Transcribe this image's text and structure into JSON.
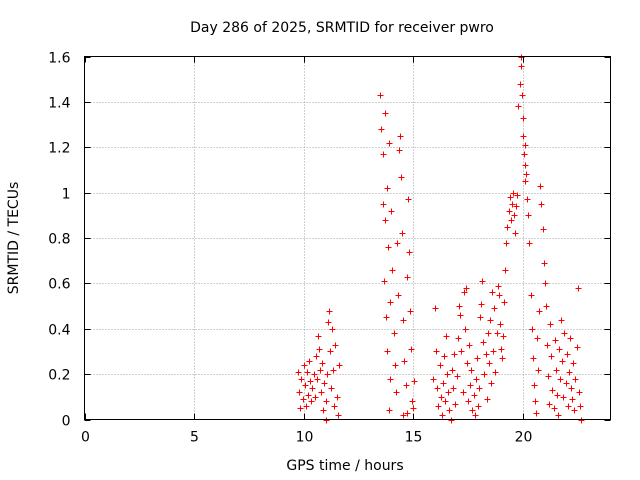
{
  "chart_data": {
    "type": "scatter",
    "title": "Day 286 of 2025, SRMTID for receiver pwro",
    "xlabel": "GPS time / hours",
    "ylabel": "SRMTID / TECUs",
    "xlim": [
      0,
      24
    ],
    "ylim": [
      0,
      1.6
    ],
    "x_ticks": [
      0,
      5,
      10,
      15,
      20
    ],
    "y_ticks": [
      0,
      0.2,
      0.4,
      0.6,
      0.8,
      1,
      1.2,
      1.4,
      1.6
    ],
    "x_tick_labels": [
      "0",
      "5",
      "10",
      "15",
      "20"
    ],
    "y_tick_labels": [
      "0",
      "0.2",
      "0.4",
      "0.6",
      "0.8",
      "1",
      "1.2",
      "1.4",
      "1.6"
    ],
    "grid": true,
    "marker": "+",
    "marker_color": "#ff0000",
    "series": [
      {
        "points": [
          [
            9.75,
            0.21
          ],
          [
            9.8,
            0.12
          ],
          [
            9.85,
            0.05
          ],
          [
            9.9,
            0.18
          ],
          [
            9.95,
            0.09
          ],
          [
            10.0,
            0.24
          ],
          [
            10.05,
            0.15
          ],
          [
            10.1,
            0.06
          ],
          [
            10.15,
            0.21
          ],
          [
            10.2,
            0.11
          ],
          [
            10.25,
            0.26
          ],
          [
            10.3,
            0.17
          ],
          [
            10.35,
            0.08
          ],
          [
            10.4,
            0.14
          ],
          [
            10.45,
            0.2
          ],
          [
            10.5,
            0.1
          ],
          [
            10.55,
            0.28
          ],
          [
            10.6,
            0.18
          ],
          [
            10.65,
            0.37
          ],
          [
            10.7,
            0.31
          ],
          [
            10.75,
            0.22
          ],
          [
            10.8,
            0.12
          ],
          [
            10.85,
            0.25
          ],
          [
            10.9,
            0.04
          ],
          [
            10.95,
            0.16
          ],
          [
            11.0,
            0.08
          ],
          [
            11.0,
            0.0
          ],
          [
            11.05,
            0.2
          ],
          [
            11.1,
            0.43
          ],
          [
            11.15,
            0.48
          ],
          [
            11.2,
            0.3
          ],
          [
            11.25,
            0.14
          ],
          [
            11.3,
            0.4
          ],
          [
            11.35,
            0.22
          ],
          [
            11.4,
            0.06
          ],
          [
            11.45,
            0.33
          ],
          [
            11.5,
            0.1
          ],
          [
            11.55,
            0.02
          ],
          [
            11.6,
            0.24
          ],
          [
            13.5,
            1.43
          ],
          [
            13.55,
            1.28
          ],
          [
            13.6,
            1.17
          ],
          [
            13.62,
            0.95
          ],
          [
            13.65,
            0.61
          ],
          [
            13.7,
            1.35
          ],
          [
            13.72,
            0.88
          ],
          [
            13.75,
            0.45
          ],
          [
            13.78,
            0.3
          ],
          [
            13.8,
            1.02
          ],
          [
            13.85,
            0.76
          ],
          [
            13.9,
            1.22
          ],
          [
            13.92,
            0.52
          ],
          [
            13.95,
            0.18
          ],
          [
            14.0,
            0.92
          ],
          [
            14.05,
            0.66
          ],
          [
            14.1,
            0.38
          ],
          [
            14.15,
            0.24
          ],
          [
            14.2,
            0.12
          ],
          [
            14.25,
            0.78
          ],
          [
            14.3,
            0.55
          ],
          [
            14.35,
            1.19
          ],
          [
            14.4,
            1.25
          ],
          [
            14.45,
            1.07
          ],
          [
            14.5,
            0.82
          ],
          [
            14.55,
            0.44
          ],
          [
            14.6,
            0.26
          ],
          [
            14.65,
            0.15
          ],
          [
            14.7,
            0.63
          ],
          [
            14.75,
            0.97
          ],
          [
            14.8,
            0.74
          ],
          [
            14.85,
            0.48
          ],
          [
            14.9,
            0.31
          ],
          [
            14.95,
            0.08
          ],
          [
            15.0,
            0.05
          ],
          [
            15.05,
            0.17
          ],
          [
            14.55,
            0.02
          ],
          [
            14.7,
            0.03
          ],
          [
            13.9,
            0.04
          ],
          [
            15.9,
            0.18
          ],
          [
            16.0,
            0.49
          ],
          [
            16.05,
            0.3
          ],
          [
            16.1,
            0.14
          ],
          [
            16.15,
            0.06
          ],
          [
            16.2,
            0.24
          ],
          [
            16.25,
            0.1
          ],
          [
            16.3,
            0.02
          ],
          [
            16.35,
            0.16
          ],
          [
            16.4,
            0.28
          ],
          [
            16.45,
            0.08
          ],
          [
            16.5,
            0.37
          ],
          [
            16.55,
            0.2
          ],
          [
            16.6,
            0.12
          ],
          [
            16.65,
            0.04
          ],
          [
            16.7,
            0.0
          ],
          [
            16.75,
            0.22
          ],
          [
            16.8,
            0.14
          ],
          [
            16.85,
            0.29
          ],
          [
            16.9,
            0.07
          ],
          [
            17.0,
            0.19
          ],
          [
            17.05,
            0.36
          ],
          [
            17.1,
            0.5
          ],
          [
            17.15,
            0.46
          ],
          [
            17.2,
            0.3
          ],
          [
            17.25,
            0.12
          ],
          [
            17.3,
            0.56
          ],
          [
            17.35,
            0.4
          ],
          [
            17.4,
            0.58
          ],
          [
            17.45,
            0.25
          ],
          [
            17.5,
            0.08
          ],
          [
            17.55,
            0.33
          ],
          [
            17.6,
            0.15
          ],
          [
            17.65,
            0.22
          ],
          [
            17.7,
            0.04
          ],
          [
            17.75,
            0.11
          ],
          [
            17.8,
            0.02
          ],
          [
            17.85,
            0.18
          ],
          [
            17.9,
            0.27
          ],
          [
            17.95,
            0.06
          ],
          [
            18.0,
            0.14
          ],
          [
            18.05,
            0.45
          ],
          [
            18.1,
            0.51
          ],
          [
            18.15,
            0.61
          ],
          [
            18.2,
            0.34
          ],
          [
            18.25,
            0.2
          ],
          [
            18.3,
            0.29
          ],
          [
            18.35,
            0.09
          ],
          [
            18.4,
            0.38
          ],
          [
            18.45,
            0.25
          ],
          [
            18.5,
            0.44
          ],
          [
            18.55,
            0.16
          ],
          [
            18.6,
            0.56
          ],
          [
            18.65,
            0.3
          ],
          [
            18.7,
            0.49
          ],
          [
            18.75,
            0.21
          ],
          [
            18.8,
            0.38
          ],
          [
            18.85,
            0.59
          ],
          [
            18.9,
            0.55
          ],
          [
            18.95,
            0.42
          ],
          [
            19.0,
            0.31
          ],
          [
            19.05,
            0.27
          ],
          [
            19.1,
            0.37
          ],
          [
            19.15,
            0.52
          ],
          [
            19.2,
            0.66
          ],
          [
            19.25,
            0.78
          ],
          [
            19.3,
            0.85
          ],
          [
            19.35,
            0.92
          ],
          [
            19.4,
            0.98
          ],
          [
            19.45,
            0.88
          ],
          [
            19.5,
            0.95
          ],
          [
            19.55,
            1.0
          ],
          [
            19.6,
            0.9
          ],
          [
            19.65,
            0.82
          ],
          [
            19.7,
            0.94
          ],
          [
            19.75,
            0.99
          ],
          [
            19.8,
            1.38
          ],
          [
            19.85,
            1.48
          ],
          [
            19.9,
            1.56
          ],
          [
            19.92,
            1.6
          ],
          [
            19.95,
            1.43
          ],
          [
            20.0,
            1.33
          ],
          [
            20.02,
            1.25
          ],
          [
            20.05,
            1.17
          ],
          [
            20.08,
            1.21
          ],
          [
            20.1,
            1.12
          ],
          [
            20.12,
            1.05
          ],
          [
            20.15,
            1.08
          ],
          [
            20.2,
            0.97
          ],
          [
            20.25,
            0.9
          ],
          [
            20.3,
            0.78
          ],
          [
            20.35,
            0.55
          ],
          [
            20.4,
            0.4
          ],
          [
            20.45,
            0.27
          ],
          [
            20.5,
            0.15
          ],
          [
            20.55,
            0.08
          ],
          [
            20.6,
            0.03
          ],
          [
            20.65,
            0.36
          ],
          [
            20.7,
            0.22
          ],
          [
            20.75,
            0.48
          ],
          [
            20.8,
            1.03
          ],
          [
            20.85,
            0.95
          ],
          [
            20.9,
            0.84
          ],
          [
            20.95,
            0.69
          ],
          [
            21.0,
            0.6
          ],
          [
            21.05,
            0.5
          ],
          [
            21.1,
            0.33
          ],
          [
            21.15,
            0.19
          ],
          [
            21.2,
            0.07
          ],
          [
            21.25,
            0.42
          ],
          [
            21.3,
            0.28
          ],
          [
            21.35,
            0.13
          ],
          [
            21.4,
            0.05
          ],
          [
            21.45,
            0.35
          ],
          [
            21.5,
            0.22
          ],
          [
            21.55,
            0.11
          ],
          [
            21.6,
            0.02
          ],
          [
            21.65,
            0.31
          ],
          [
            21.7,
            0.18
          ],
          [
            21.75,
            0.44
          ],
          [
            21.8,
            0.26
          ],
          [
            21.85,
            0.1
          ],
          [
            21.9,
            0.38
          ],
          [
            21.95,
            0.16
          ],
          [
            22.0,
            0.29
          ],
          [
            22.05,
            0.06
          ],
          [
            22.1,
            0.21
          ],
          [
            22.15,
            0.36
          ],
          [
            22.2,
            0.14
          ],
          [
            22.25,
            0.09
          ],
          [
            22.3,
            0.25
          ],
          [
            22.35,
            0.04
          ],
          [
            22.4,
            0.18
          ],
          [
            22.45,
            0.32
          ],
          [
            22.5,
            0.58
          ],
          [
            22.55,
            0.12
          ],
          [
            22.6,
            0.06
          ],
          [
            22.65,
            0.0
          ]
        ]
      }
    ]
  }
}
